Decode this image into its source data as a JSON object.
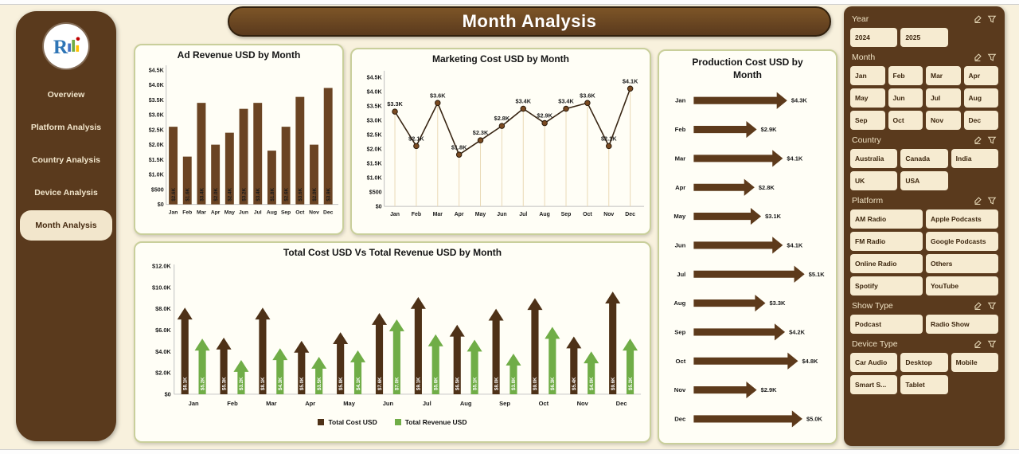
{
  "header": {
    "title": "Month Analysis"
  },
  "sidebar": {
    "items": [
      {
        "label": "Overview",
        "active": false
      },
      {
        "label": "Platform Analysis",
        "active": false
      },
      {
        "label": "Country Analysis",
        "active": false
      },
      {
        "label": "Device Analysis",
        "active": false
      },
      {
        "label": "Month Analysis",
        "active": true
      }
    ]
  },
  "slicers": [
    {
      "title": "Year",
      "cols": 3,
      "options": [
        "2024",
        "2025"
      ]
    },
    {
      "title": "Month",
      "cols": 4,
      "options": [
        "Jan",
        "Feb",
        "Mar",
        "Apr",
        "May",
        "Jun",
        "Jul",
        "Aug",
        "Sep",
        "Oct",
        "Nov",
        "Dec"
      ]
    },
    {
      "title": "Country",
      "cols": 3,
      "options": [
        "Australia",
        "Canada",
        "India",
        "UK",
        "USA"
      ]
    },
    {
      "title": "Platform",
      "cols": 2,
      "options": [
        "AM Radio",
        "Apple Podcasts",
        "FM Radio",
        "Google Podcasts",
        "Online Radio",
        "Others",
        "Spotify",
        "YouTube"
      ]
    },
    {
      "title": "Show Type",
      "cols": 2,
      "options": [
        "Podcast",
        "Radio Show"
      ]
    },
    {
      "title": "Device Type",
      "cols": 3,
      "options": [
        "Car Audio",
        "Desktop",
        "Mobile",
        "Smart S...",
        "Tablet"
      ]
    }
  ],
  "slicer_icons": [
    "clear-selections-icon",
    "filter-icon"
  ],
  "colors": {
    "panel_brown": "#5a3a1d",
    "card_border": "#c9cf9b",
    "background_cream": "#f8f1dd",
    "button_cream": "#f6ebd1",
    "bar_brown": "#6b4423",
    "arrow_brown": "#5d3a1b",
    "cost_brown": "#4e3117",
    "revenue_green": "#70ad47"
  },
  "chart_data": [
    {
      "type": "bar",
      "title": "Ad Revenue USD by Month",
      "categories": [
        "Jan",
        "Feb",
        "Mar",
        "Apr",
        "May",
        "Jun",
        "Jul",
        "Aug",
        "Sep",
        "Oct",
        "Nov",
        "Dec"
      ],
      "values": [
        2.6,
        1.6,
        3.4,
        2.0,
        2.4,
        3.2,
        3.4,
        1.8,
        2.6,
        3.6,
        2.0,
        3.9
      ],
      "labels": [
        "$2.6K",
        "$1.6K",
        "$3.4K",
        "$2.0K",
        "$2.4K",
        "$3.2K",
        "$3.4K",
        "$1.8K",
        "$2.6K",
        "$3.6K",
        "$2.0K",
        "$3.9K"
      ],
      "ylim": [
        0,
        4.5
      ],
      "yticks": [
        0,
        0.5,
        1,
        1.5,
        2,
        2.5,
        3,
        3.5,
        4,
        4.5
      ],
      "ytick_labels": [
        "$0",
        "$500",
        "$1.0K",
        "$1.5K",
        "$2.0K",
        "$2.5K",
        "$3.0K",
        "$3.5K",
        "$4.0K",
        "$4.5K"
      ],
      "xlabel": "",
      "ylabel": "",
      "grid": false,
      "color": "#6b4423"
    },
    {
      "type": "line",
      "title": "Marketing Cost USD by Month",
      "categories": [
        "Jan",
        "Feb",
        "Mar",
        "Apr",
        "May",
        "Jun",
        "Jul",
        "Aug",
        "Sep",
        "Oct",
        "Nov",
        "Dec"
      ],
      "values": [
        3.3,
        2.1,
        3.6,
        1.8,
        2.3,
        2.8,
        3.4,
        2.9,
        3.4,
        3.6,
        2.1,
        4.1
      ],
      "labels": [
        "$3.3K",
        "$2.1K",
        "$3.6K",
        "$1.8K",
        "$2.3K",
        "$2.8K",
        "$3.4K",
        "$2.9K",
        "$3.4K",
        "$3.6K",
        "$2.1K",
        "$4.1K"
      ],
      "ylim": [
        0,
        4.5
      ],
      "yticks": [
        0,
        0.5,
        1,
        1.5,
        2,
        2.5,
        3,
        3.5,
        4,
        4.5
      ],
      "ytick_labels": [
        "$0",
        "$500",
        "$1.0K",
        "$1.5K",
        "$2.0K",
        "$2.5K",
        "$3.0K",
        "$3.5K",
        "$4.0K",
        "$4.5K"
      ],
      "xlabel": "",
      "ylabel": "",
      "grid": false,
      "line_color": "#382513",
      "marker_color": "#7a4a21"
    },
    {
      "type": "bar",
      "subtype": "horizontal-arrow",
      "title": "Production Cost USD by Month",
      "categories": [
        "Jan",
        "Feb",
        "Mar",
        "Apr",
        "May",
        "Jun",
        "Jul",
        "Aug",
        "Sep",
        "Oct",
        "Nov",
        "Dec"
      ],
      "values": [
        4.3,
        2.9,
        4.1,
        2.8,
        3.1,
        4.1,
        5.1,
        3.3,
        4.2,
        4.8,
        2.9,
        5.0
      ],
      "labels": [
        "$4.3K",
        "$2.9K",
        "$4.1K",
        "$2.8K",
        "$3.1K",
        "$4.1K",
        "$5.1K",
        "$3.3K",
        "$4.2K",
        "$4.8K",
        "$2.9K",
        "$5.0K"
      ],
      "xlabel": "",
      "ylabel": "",
      "grid": false,
      "color": "#5d3a1b"
    },
    {
      "type": "bar",
      "subtype": "vertical-arrow",
      "title": "Total Cost USD Vs Total Revenue USD by Month",
      "categories": [
        "Jan",
        "Feb",
        "Mar",
        "Apr",
        "May",
        "Jun",
        "Jul",
        "Aug",
        "Sep",
        "Oct",
        "Nov",
        "Dec"
      ],
      "series": [
        {
          "name": "Total Cost USD",
          "color": "#4e3117",
          "values": [
            8.1,
            5.3,
            8.1,
            5.0,
            5.8,
            7.6,
            9.1,
            6.5,
            8.0,
            9.0,
            5.4,
            9.6
          ],
          "labels": [
            "$8.1K",
            "$5.3K",
            "$8.1K",
            "$5.0K",
            "$5.8K",
            "$7.6K",
            "$9.1K",
            "$6.5K",
            "$8.0K",
            "$9.0K",
            "$5.4K",
            "$9.6K"
          ]
        },
        {
          "name": "Total Revenue USD",
          "color": "#70ad47",
          "values": [
            5.2,
            3.2,
            4.3,
            3.5,
            4.1,
            7.0,
            5.6,
            5.1,
            3.8,
            6.3,
            4.0,
            5.2
          ],
          "labels": [
            "$5.2K",
            "$3.2K",
            "$4.3K",
            "$3.5K",
            "$4.1K",
            "$7.0K",
            "$5.6K",
            "$5.1K",
            "$3.8K",
            "$6.3K",
            "$4.0K",
            "$5.2K"
          ]
        }
      ],
      "ylim": [
        0,
        12
      ],
      "yticks": [
        0,
        2,
        4,
        6,
        8,
        10,
        12
      ],
      "ytick_labels": [
        "$0",
        "$2.0K",
        "$4.0K",
        "$6.0K",
        "$8.0K",
        "$10.0K",
        "$12.0K"
      ],
      "xlabel": "",
      "ylabel": "",
      "grid": false,
      "legend_position": "bottom"
    }
  ]
}
